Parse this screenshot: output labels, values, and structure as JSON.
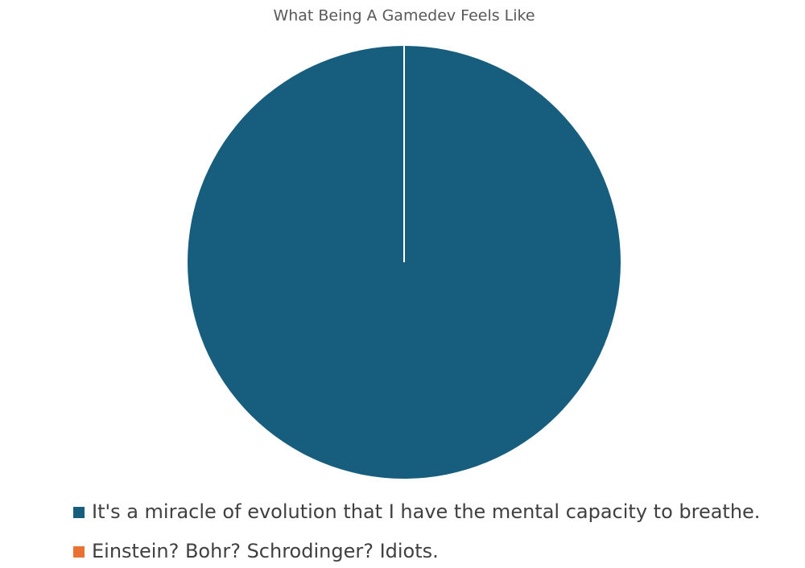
{
  "chart_data": {
    "type": "pie",
    "title": "What Being A Gamedev Feels Like",
    "categories": [
      "It's a miracle of evolution that I have the mental capacity to breathe.",
      "Einstein? Bohr? Schrodinger? Idiots."
    ],
    "values": [
      100,
      0
    ],
    "colors": [
      "#175e7e",
      "#e97132"
    ],
    "legend": "bottom"
  }
}
